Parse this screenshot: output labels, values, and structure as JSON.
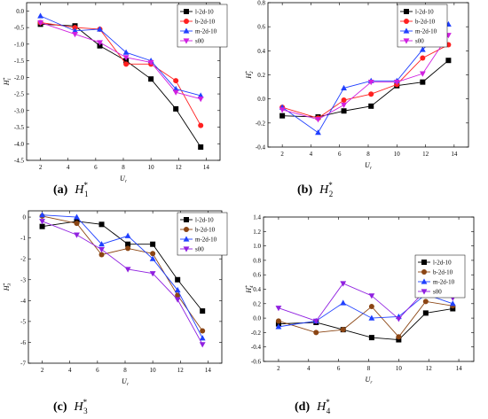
{
  "figure": {
    "panels": [
      {
        "label": "(a)",
        "caption": "H",
        "caption_sup": "*",
        "caption_sub": "1"
      },
      {
        "label": "(b)",
        "caption": "H",
        "caption_sup": "*",
        "caption_sub": "2"
      },
      {
        "label": "(c)",
        "caption": "H",
        "caption_sup": "*",
        "caption_sub": "3"
      },
      {
        "label": "(d)",
        "caption": "H",
        "caption_sup": "*",
        "caption_sub": "4"
      }
    ]
  },
  "chart_data": [
    {
      "type": "line",
      "title": "",
      "xlabel": "U",
      "xlabel_sub": "r",
      "ylabel": "H",
      "ylabel_sup": "*",
      "ylabel_sub": "1",
      "x": [
        2,
        4.5,
        6.3,
        8.2,
        10,
        11.8,
        13.6
      ],
      "xticks": [
        "2",
        "4",
        "6",
        "8",
        "10",
        "12",
        "14"
      ],
      "xtick_values": [
        2,
        4,
        6,
        8,
        10,
        12,
        14
      ],
      "xlim": [
        1,
        15
      ],
      "ylim": [
        -4.5,
        0.25
      ],
      "yticks": [
        "0.0",
        "-0.5",
        "-1.0",
        "-1.5",
        "-2.0",
        "-2.5",
        "-3.0",
        "-3.5",
        "-4.0",
        "-4.5"
      ],
      "ytick_values": [
        0,
        -0.5,
        -1,
        -1.5,
        -2,
        -2.5,
        -3,
        -3.5,
        -4,
        -4.5
      ],
      "legend_position": "top-right",
      "series": [
        {
          "name": "l-2d-10",
          "color": "#000000",
          "marker": "square",
          "values": [
            -0.4,
            -0.45,
            -1.05,
            -1.5,
            -2.05,
            -2.95,
            -4.1
          ]
        },
        {
          "name": "b-2d-10",
          "color": "#ff2020",
          "marker": "circle",
          "values": [
            -0.35,
            -0.5,
            -0.55,
            -1.6,
            -1.6,
            -2.1,
            -3.45
          ]
        },
        {
          "name": "m-2d-10",
          "color": "#2040ff",
          "marker": "triangle-up",
          "values": [
            -0.15,
            -0.6,
            -0.55,
            -1.25,
            -1.5,
            -2.35,
            -2.55
          ]
        },
        {
          "name": "s00",
          "color": "#d020e0",
          "marker": "triangle-down",
          "values": [
            -0.35,
            -0.7,
            -0.95,
            -1.4,
            -1.55,
            -2.45,
            -2.65
          ]
        }
      ]
    },
    {
      "type": "line",
      "title": "",
      "xlabel": "U",
      "xlabel_sub": "r",
      "ylabel": "H",
      "ylabel_sup": "*",
      "ylabel_sub": "2",
      "x": [
        2,
        4.5,
        6.3,
        8.2,
        10,
        11.8,
        13.6
      ],
      "xticks": [
        "2",
        "4",
        "6",
        "8",
        "10",
        "12",
        "14"
      ],
      "xtick_values": [
        2,
        4,
        6,
        8,
        10,
        12,
        14
      ],
      "xlim": [
        1,
        15
      ],
      "ylim": [
        -0.4,
        0.8
      ],
      "yticks": [
        "0.8",
        "0.6",
        "0.4",
        "0.2",
        "0.0",
        "-0.2",
        "-0.4"
      ],
      "ytick_values": [
        0.8,
        0.6,
        0.4,
        0.2,
        0,
        -0.2,
        -0.4
      ],
      "legend_position": "top-left",
      "series": [
        {
          "name": "l-2d-10",
          "color": "#000000",
          "marker": "square",
          "values": [
            -0.14,
            -0.15,
            -0.1,
            -0.06,
            0.11,
            0.14,
            0.32
          ]
        },
        {
          "name": "b-2d-10",
          "color": "#ff2020",
          "marker": "circle",
          "values": [
            -0.07,
            -0.16,
            -0.01,
            0.04,
            0.12,
            0.34,
            0.45
          ]
        },
        {
          "name": "m-2d-10",
          "color": "#2040ff",
          "marker": "triangle-up",
          "values": [
            -0.07,
            -0.28,
            0.09,
            0.15,
            0.15,
            0.41,
            0.62
          ]
        },
        {
          "name": "s00",
          "color": "#d020e0",
          "marker": "triangle-down",
          "values": [
            -0.09,
            -0.17,
            -0.05,
            0.14,
            0.14,
            0.21,
            0.53
          ]
        }
      ]
    },
    {
      "type": "line",
      "title": "",
      "xlabel": "U",
      "xlabel_sub": "r",
      "ylabel": "H",
      "ylabel_sup": "*",
      "ylabel_sub": "3",
      "x": [
        2,
        4.5,
        6.3,
        8.2,
        10,
        11.8,
        13.6
      ],
      "xticks": [
        "2",
        "4",
        "6",
        "8",
        "10",
        "12",
        "14"
      ],
      "xtick_values": [
        2,
        4,
        6,
        8,
        10,
        12,
        14
      ],
      "xlim": [
        1,
        15
      ],
      "ylim": [
        -7,
        0.3
      ],
      "yticks": [
        "0",
        "-1",
        "-2",
        "-3",
        "-4",
        "-5",
        "-6",
        "-7"
      ],
      "ytick_values": [
        0,
        -1,
        -2,
        -3,
        -4,
        -5,
        -6,
        -7
      ],
      "legend_position": "top-right",
      "series": [
        {
          "name": "l-2d-10",
          "color": "#000000",
          "marker": "square",
          "values": [
            -0.45,
            -0.2,
            -0.35,
            -1.3,
            -1.3,
            -3.0,
            -4.5
          ]
        },
        {
          "name": "b-2d-10",
          "color": "#8b4513",
          "marker": "circle",
          "values": [
            0.05,
            -0.3,
            -1.8,
            -1.5,
            -1.75,
            -3.75,
            -5.45
          ]
        },
        {
          "name": "m-2d-10",
          "color": "#2040ff",
          "marker": "triangle-up",
          "values": [
            0.1,
            0.0,
            -1.3,
            -0.9,
            -2.0,
            -3.5,
            -5.8
          ]
        },
        {
          "name": "s00",
          "color": "#9020e0",
          "marker": "triangle-down",
          "values": [
            -0.2,
            -0.85,
            -1.55,
            -2.5,
            -2.7,
            -3.95,
            -6.1
          ]
        }
      ]
    },
    {
      "type": "line",
      "title": "",
      "xlabel": "U",
      "xlabel_sub": "r",
      "ylabel": "H",
      "ylabel_sup": "*",
      "ylabel_sub": "4",
      "x": [
        2,
        4.5,
        6.3,
        8.2,
        10,
        11.8,
        13.6
      ],
      "xticks": [
        "2",
        "4",
        "6",
        "8",
        "10",
        "12",
        "14"
      ],
      "xtick_values": [
        2,
        4,
        6,
        8,
        10,
        12,
        14
      ],
      "xlim": [
        1,
        15
      ],
      "ylim": [
        -0.6,
        1.4
      ],
      "yticks": [
        "1.4",
        "1.2",
        "1.0",
        "0.8",
        "0.6",
        "0.4",
        "0.2",
        "0.0",
        "-0.2",
        "-0.4",
        "-0.6"
      ],
      "ytick_values": [
        1.4,
        1.2,
        1.0,
        0.8,
        0.6,
        0.4,
        0.2,
        0,
        -0.2,
        -0.4,
        -0.6
      ],
      "legend_position": "top-right",
      "series": [
        {
          "name": "l-2d-10",
          "color": "#000000",
          "marker": "square",
          "values": [
            -0.08,
            -0.06,
            -0.16,
            -0.27,
            -0.3,
            0.07,
            0.13
          ]
        },
        {
          "name": "b-2d-10",
          "color": "#8b4513",
          "marker": "circle",
          "values": [
            -0.04,
            -0.2,
            -0.16,
            0.16,
            -0.26,
            0.23,
            0.17
          ]
        },
        {
          "name": "m-2d-10",
          "color": "#2040ff",
          "marker": "triangle-up",
          "values": [
            -0.12,
            -0.04,
            0.21,
            0.0,
            0.02,
            0.33,
            0.2
          ]
        },
        {
          "name": "s00",
          "color": "#9020e0",
          "marker": "triangle-down",
          "values": [
            0.14,
            -0.04,
            0.48,
            0.31,
            -0.01,
            0.39,
            0.28
          ]
        }
      ]
    }
  ]
}
